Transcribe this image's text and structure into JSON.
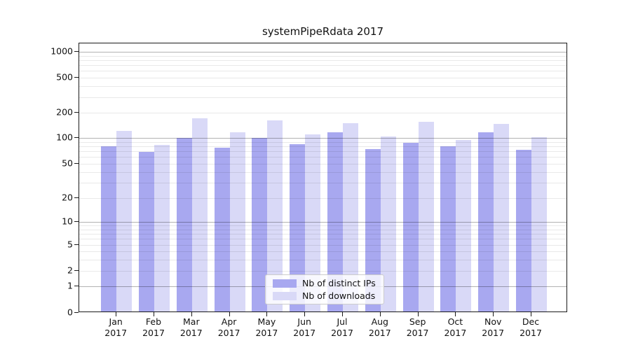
{
  "title": "systemPipeRdata 2017",
  "colors": {
    "distinct_ips_bar": "#a8a8f0",
    "downloads_bar": "#d9d9f7",
    "grid_major": "#b3b3b3",
    "grid_minor": "#e8e8e8",
    "axis": "#1a1a1a",
    "legend_border": "#cccccc"
  },
  "chart_data": {
    "type": "bar",
    "title": "systemPipeRdata 2017",
    "categories": [
      "Jan",
      "Feb",
      "Mar",
      "Apr",
      "May",
      "Jun",
      "Jul",
      "Aug",
      "Sep",
      "Oct",
      "Nov",
      "Dec"
    ],
    "category_year": "2017",
    "series": [
      {
        "name": "Nb of distinct IPs",
        "color": "#a8a8f0",
        "values": [
          77,
          66,
          96,
          74,
          96,
          81,
          112,
          71,
          84,
          77,
          112,
          70
        ]
      },
      {
        "name": "Nb of downloads",
        "color": "#d9d9f7",
        "values": [
          117,
          80,
          165,
          112,
          156,
          106,
          144,
          100,
          150,
          91,
          141,
          98
        ]
      }
    ],
    "y_axis": {
      "scale": "log-with-zero",
      "tick_values": [
        0,
        1,
        2,
        5,
        10,
        20,
        50,
        100,
        200,
        500,
        1000
      ],
      "tick_labels": [
        "0",
        "1",
        "2",
        "5",
        "10",
        "20",
        "50",
        "100",
        "200",
        "500",
        "1000"
      ],
      "major_gridlines": [
        1,
        10,
        100,
        1000
      ],
      "ylim": [
        0,
        1000
      ]
    },
    "grid": "on",
    "legend_position": "lower center"
  },
  "legend": {
    "items": [
      {
        "label": "Nb of distinct IPs",
        "series": "distinct_ips"
      },
      {
        "label": "Nb of downloads",
        "series": "downloads"
      }
    ]
  }
}
